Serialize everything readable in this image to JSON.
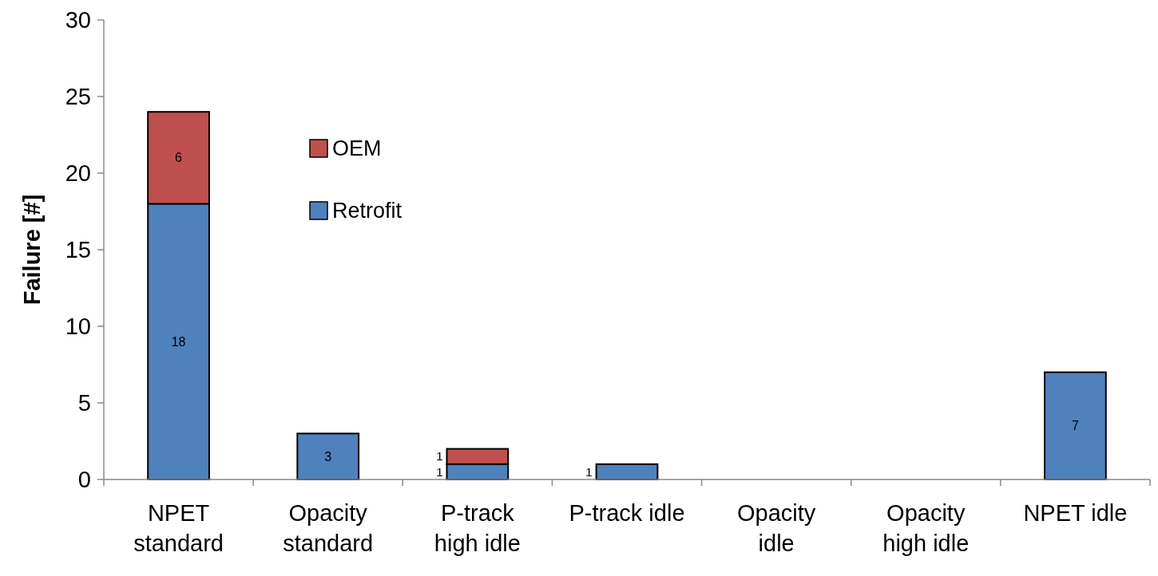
{
  "chart_data": {
    "type": "bar",
    "stacked": true,
    "ylabel": "Failure [#]",
    "categories": [
      "NPET\nstandard",
      "Opacity\nstandard",
      "P-track\nhigh idle",
      "P-track idle",
      "Opacity\nidle",
      "Opacity\nhigh idle",
      "NPET idle"
    ],
    "series": [
      {
        "name": "Retrofit",
        "color": "#4f81bd",
        "values": [
          18,
          3,
          1,
          1,
          0,
          0,
          7
        ],
        "value_labels": [
          "18",
          "3",
          "1",
          "1",
          null,
          null,
          "7"
        ]
      },
      {
        "name": "OEM",
        "color": "#c0504d",
        "values": [
          6,
          0,
          1,
          0,
          0,
          0,
          0
        ],
        "value_labels": [
          "6",
          null,
          "1",
          null,
          null,
          null,
          null
        ]
      }
    ],
    "ylim": [
      0,
      30
    ],
    "yticks": [
      0,
      5,
      10,
      15,
      20,
      25,
      30
    ],
    "grid": false,
    "legend": "top left"
  }
}
